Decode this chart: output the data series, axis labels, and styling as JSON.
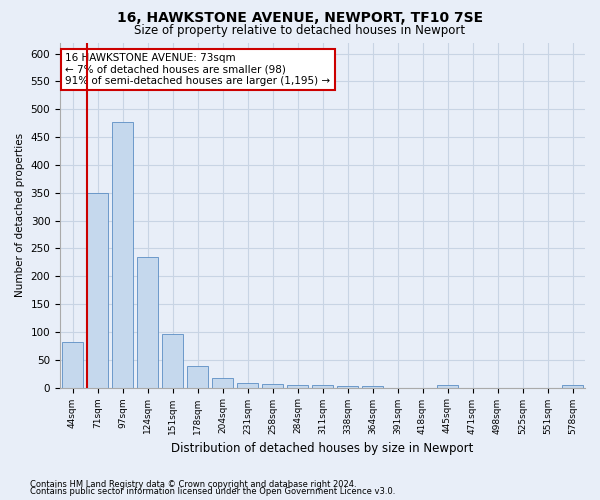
{
  "title1": "16, HAWKSTONE AVENUE, NEWPORT, TF10 7SE",
  "title2": "Size of property relative to detached houses in Newport",
  "xlabel": "Distribution of detached houses by size in Newport",
  "ylabel": "Number of detached properties",
  "categories": [
    "44sqm",
    "71sqm",
    "97sqm",
    "124sqm",
    "151sqm",
    "178sqm",
    "204sqm",
    "231sqm",
    "258sqm",
    "284sqm",
    "311sqm",
    "338sqm",
    "364sqm",
    "391sqm",
    "418sqm",
    "445sqm",
    "471sqm",
    "498sqm",
    "525sqm",
    "551sqm",
    "578sqm"
  ],
  "values": [
    82,
    350,
    477,
    235,
    97,
    38,
    18,
    8,
    7,
    5,
    5,
    3,
    3,
    0,
    0,
    5,
    0,
    0,
    0,
    0,
    5
  ],
  "bar_color": "#c5d8ed",
  "bar_edge_color": "#5b8ec4",
  "highlight_line_color": "#cc0000",
  "annotation_text": "16 HAWKSTONE AVENUE: 73sqm\n← 7% of detached houses are smaller (98)\n91% of semi-detached houses are larger (1,195) →",
  "annotation_box_color": "#ffffff",
  "annotation_box_edge": "#cc0000",
  "ylim": [
    0,
    620
  ],
  "yticks": [
    0,
    50,
    100,
    150,
    200,
    250,
    300,
    350,
    400,
    450,
    500,
    550,
    600
  ],
  "grid_color": "#c8d4e4",
  "bg_color": "#e8eef8",
  "footnote1": "Contains HM Land Registry data © Crown copyright and database right 2024.",
  "footnote2": "Contains public sector information licensed under the Open Government Licence v3.0."
}
